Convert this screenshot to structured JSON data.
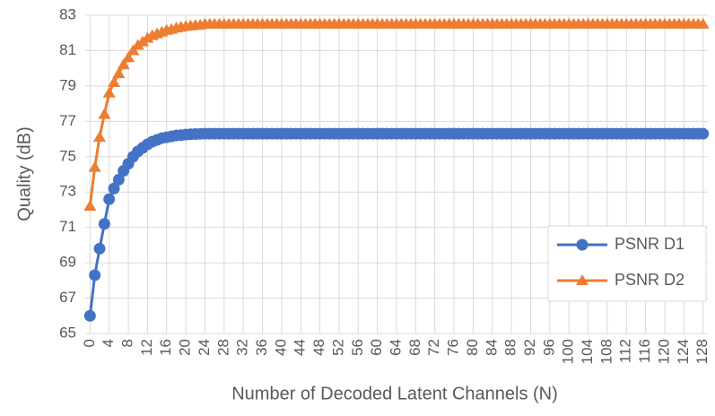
{
  "chart_data": {
    "type": "line",
    "x_label": "Number of Decoded Latent Channels (N)",
    "y_label": "Quality (dB)",
    "x": [
      0,
      1,
      2,
      3,
      4,
      5,
      6,
      7,
      8,
      9,
      10,
      11,
      12,
      13,
      14,
      15,
      16,
      17,
      18,
      19,
      20,
      21,
      22,
      23,
      24,
      25,
      26,
      27,
      28,
      29,
      30,
      31,
      32,
      33,
      34,
      35,
      36,
      37,
      38,
      39,
      40,
      41,
      42,
      43,
      44,
      45,
      46,
      47,
      48,
      49,
      50,
      51,
      52,
      53,
      54,
      55,
      56,
      57,
      58,
      59,
      60,
      61,
      62,
      63,
      64,
      65,
      66,
      67,
      68,
      69,
      70,
      71,
      72,
      73,
      74,
      75,
      76,
      77,
      78,
      79,
      80,
      81,
      82,
      83,
      84,
      85,
      86,
      87,
      88,
      89,
      90,
      91,
      92,
      93,
      94,
      95,
      96,
      97,
      98,
      99,
      100,
      101,
      102,
      103,
      104,
      105,
      106,
      107,
      108,
      109,
      110,
      111,
      112,
      113,
      114,
      115,
      116,
      117,
      118,
      119,
      120,
      121,
      122,
      123,
      124,
      125,
      126,
      127,
      128
    ],
    "series": [
      {
        "name": "PSNR D1",
        "color": "#4472c4",
        "marker": "circle",
        "values": [
          66.0,
          68.3,
          69.8,
          71.2,
          72.6,
          73.2,
          73.7,
          74.2,
          74.6,
          75.0,
          75.3,
          75.5,
          75.7,
          75.85,
          75.95,
          76.05,
          76.1,
          76.15,
          76.2,
          76.22,
          76.25,
          76.27,
          76.28,
          76.29,
          76.3,
          76.3,
          76.3,
          76.3,
          76.3,
          76.3,
          76.3,
          76.3,
          76.3,
          76.3,
          76.3,
          76.3,
          76.3,
          76.3,
          76.3,
          76.3,
          76.3,
          76.3,
          76.3,
          76.3,
          76.3,
          76.3,
          76.3,
          76.3,
          76.3,
          76.3,
          76.3,
          76.3,
          76.3,
          76.3,
          76.3,
          76.3,
          76.3,
          76.3,
          76.3,
          76.3,
          76.3,
          76.3,
          76.3,
          76.3,
          76.3,
          76.3,
          76.3,
          76.3,
          76.3,
          76.3,
          76.3,
          76.3,
          76.3,
          76.3,
          76.3,
          76.3,
          76.3,
          76.3,
          76.3,
          76.3,
          76.3,
          76.3,
          76.3,
          76.3,
          76.3,
          76.3,
          76.3,
          76.3,
          76.3,
          76.3,
          76.3,
          76.3,
          76.3,
          76.3,
          76.3,
          76.3,
          76.3,
          76.3,
          76.3,
          76.3,
          76.3,
          76.3,
          76.3,
          76.3,
          76.3,
          76.3,
          76.3,
          76.3,
          76.3,
          76.3,
          76.3,
          76.3,
          76.3,
          76.3,
          76.3,
          76.3,
          76.3,
          76.3,
          76.3,
          76.3,
          76.3,
          76.3,
          76.3,
          76.3,
          76.3,
          76.3,
          76.3,
          76.3,
          76.3
        ]
      },
      {
        "name": "PSNR D2",
        "color": "#ed7d31",
        "marker": "triangle",
        "values": [
          72.2,
          74.4,
          76.1,
          77.4,
          78.6,
          79.2,
          79.7,
          80.2,
          80.6,
          81.0,
          81.3,
          81.5,
          81.7,
          81.85,
          81.95,
          82.05,
          82.15,
          82.2,
          82.28,
          82.33,
          82.37,
          82.4,
          82.43,
          82.45,
          82.5,
          82.5,
          82.5,
          82.5,
          82.5,
          82.5,
          82.5,
          82.5,
          82.5,
          82.5,
          82.5,
          82.5,
          82.5,
          82.5,
          82.5,
          82.5,
          82.5,
          82.5,
          82.5,
          82.5,
          82.5,
          82.5,
          82.5,
          82.5,
          82.5,
          82.5,
          82.5,
          82.5,
          82.5,
          82.5,
          82.5,
          82.5,
          82.5,
          82.5,
          82.5,
          82.5,
          82.5,
          82.5,
          82.5,
          82.5,
          82.5,
          82.5,
          82.5,
          82.5,
          82.5,
          82.5,
          82.5,
          82.5,
          82.5,
          82.5,
          82.5,
          82.5,
          82.5,
          82.5,
          82.5,
          82.5,
          82.5,
          82.5,
          82.5,
          82.5,
          82.5,
          82.5,
          82.5,
          82.5,
          82.5,
          82.5,
          82.5,
          82.5,
          82.5,
          82.5,
          82.5,
          82.5,
          82.5,
          82.5,
          82.5,
          82.5,
          82.5,
          82.5,
          82.5,
          82.5,
          82.5,
          82.5,
          82.5,
          82.5,
          82.5,
          82.5,
          82.5,
          82.5,
          82.5,
          82.5,
          82.5,
          82.5,
          82.5,
          82.5,
          82.5,
          82.5,
          82.5,
          82.5,
          82.5,
          82.5,
          82.5,
          82.5,
          82.5,
          82.5,
          82.5
        ]
      }
    ],
    "xlim": [
      -1,
      129
    ],
    "xticks": [
      0,
      4,
      8,
      12,
      16,
      20,
      24,
      28,
      32,
      36,
      40,
      44,
      48,
      52,
      56,
      60,
      64,
      68,
      72,
      76,
      80,
      84,
      88,
      92,
      96,
      100,
      104,
      108,
      112,
      116,
      120,
      124,
      128
    ],
    "ylim": [
      65,
      83
    ],
    "yticks": [
      65,
      67,
      69,
      71,
      73,
      75,
      77,
      79,
      81,
      83
    ],
    "grid": true,
    "legend": "right"
  }
}
